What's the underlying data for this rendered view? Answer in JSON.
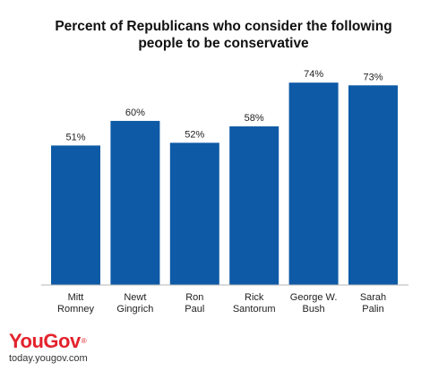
{
  "chart_data": {
    "type": "bar",
    "title": "Percent of Republicans who consider the following\npeople to be conservative",
    "categories": [
      "Mitt\nRomney",
      "Newt\nGingrich",
      "Ron\nPaul",
      "Rick\nSantorum",
      "George W.\nBush",
      "Sarah\nPalin"
    ],
    "values": [
      51,
      60,
      52,
      58,
      74,
      73
    ],
    "value_labels": [
      "51%",
      "60%",
      "52%",
      "58%",
      "74%",
      "73%"
    ],
    "ylim": [
      0,
      78
    ],
    "bar_color": "#0e5aa6",
    "grid": false,
    "legend": "none"
  },
  "branding": {
    "logo_you": "You",
    "logo_gov": "Gov",
    "logo_mark": "®",
    "url": "today.yougov.com"
  }
}
